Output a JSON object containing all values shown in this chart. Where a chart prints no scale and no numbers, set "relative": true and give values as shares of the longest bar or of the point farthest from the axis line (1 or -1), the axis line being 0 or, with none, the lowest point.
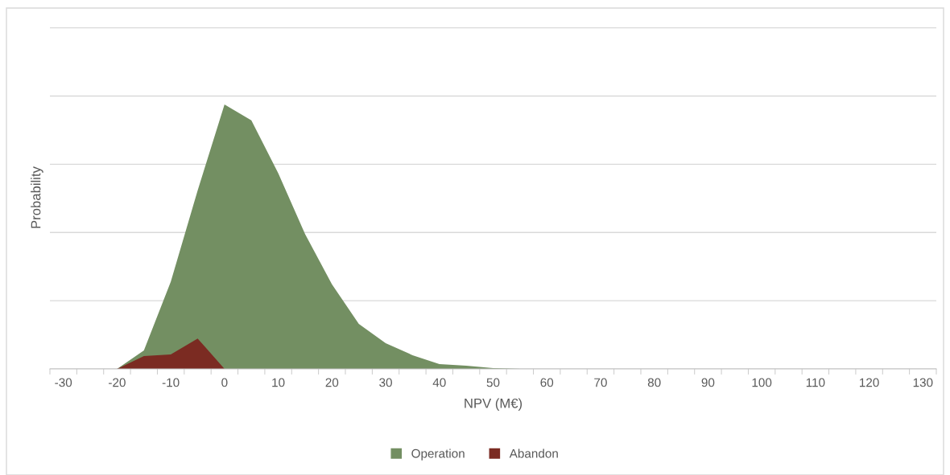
{
  "chart_data": {
    "type": "area",
    "relative": true,
    "xlabel": "NPV (M€)",
    "ylabel": "Probability",
    "categories": [
      "-30",
      null,
      "-20",
      null,
      "-10",
      null,
      "0",
      null,
      "10",
      null,
      "20",
      null,
      "30",
      null,
      "40",
      null,
      "50",
      null,
      "60",
      null,
      "70",
      null,
      "80",
      null,
      "90",
      null,
      "100",
      null,
      "110",
      null,
      "120",
      null,
      "130"
    ],
    "series": [
      {
        "name": "Operation",
        "color": "#738f62",
        "values": [
          0,
          0,
          0,
          0.07,
          0.33,
          0.675,
          1,
          0.94,
          0.74,
          0.51,
          0.32,
          0.17,
          0.097,
          0.052,
          0.018,
          0.012,
          0.003,
          0,
          0,
          0,
          0,
          0,
          0,
          0,
          0,
          0,
          0,
          0,
          0,
          0,
          0,
          0,
          0
        ]
      },
      {
        "name": "Abandon",
        "color": "#7b2b22",
        "values": [
          null,
          null,
          0,
          0.049,
          0.055,
          0.115,
          0,
          null,
          null,
          null,
          null,
          null,
          null,
          null,
          null,
          null,
          null,
          null,
          null,
          null,
          null,
          null,
          null,
          null,
          null,
          null,
          null,
          null,
          null,
          null,
          null,
          null,
          null
        ]
      }
    ],
    "grid": "y",
    "legend": "bottom"
  }
}
